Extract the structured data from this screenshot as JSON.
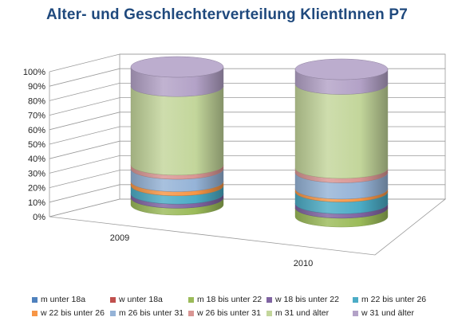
{
  "chart_data": {
    "type": "bar",
    "variant": "3d-cylinder-stacked-100",
    "title": "Alter- und Geschlechterverteilung KlientInnen P7",
    "categories": [
      "2009",
      "2010"
    ],
    "yticks": [
      "0%",
      "10%",
      "20%",
      "30%",
      "40%",
      "50%",
      "60%",
      "70%",
      "80%",
      "90%",
      "100%"
    ],
    "ylim": [
      0,
      100
    ],
    "grid": true,
    "legend_position": "bottom",
    "series": [
      {
        "name": "m unter 18a",
        "color": "#4f81bd",
        "values": [
          0,
          0
        ]
      },
      {
        "name": "w unter 18a",
        "color": "#c0504d",
        "values": [
          0,
          0
        ]
      },
      {
        "name": "m 18 bis unter 22",
        "color": "#9bbb59",
        "values": [
          5,
          6
        ]
      },
      {
        "name": "w 18 bis unter 22",
        "color": "#8064a2",
        "values": [
          3,
          3
        ]
      },
      {
        "name": "m 22 bis unter 26",
        "color": "#4bacc6",
        "values": [
          6,
          8
        ]
      },
      {
        "name": "w 22 bis unter 26",
        "color": "#f79646",
        "values": [
          3,
          2
        ]
      },
      {
        "name": "m 26 bis unter 31",
        "color": "#95b3d7",
        "values": [
          9,
          11
        ]
      },
      {
        "name": "w 26 bis unter 31",
        "color": "#d99694",
        "values": [
          3,
          3
        ]
      },
      {
        "name": "m 31 und älter",
        "color": "#c3d69b",
        "values": [
          57,
          57
        ]
      },
      {
        "name": "w 31 und älter",
        "color": "#b3a2c7",
        "values": [
          14,
          10
        ]
      }
    ]
  }
}
